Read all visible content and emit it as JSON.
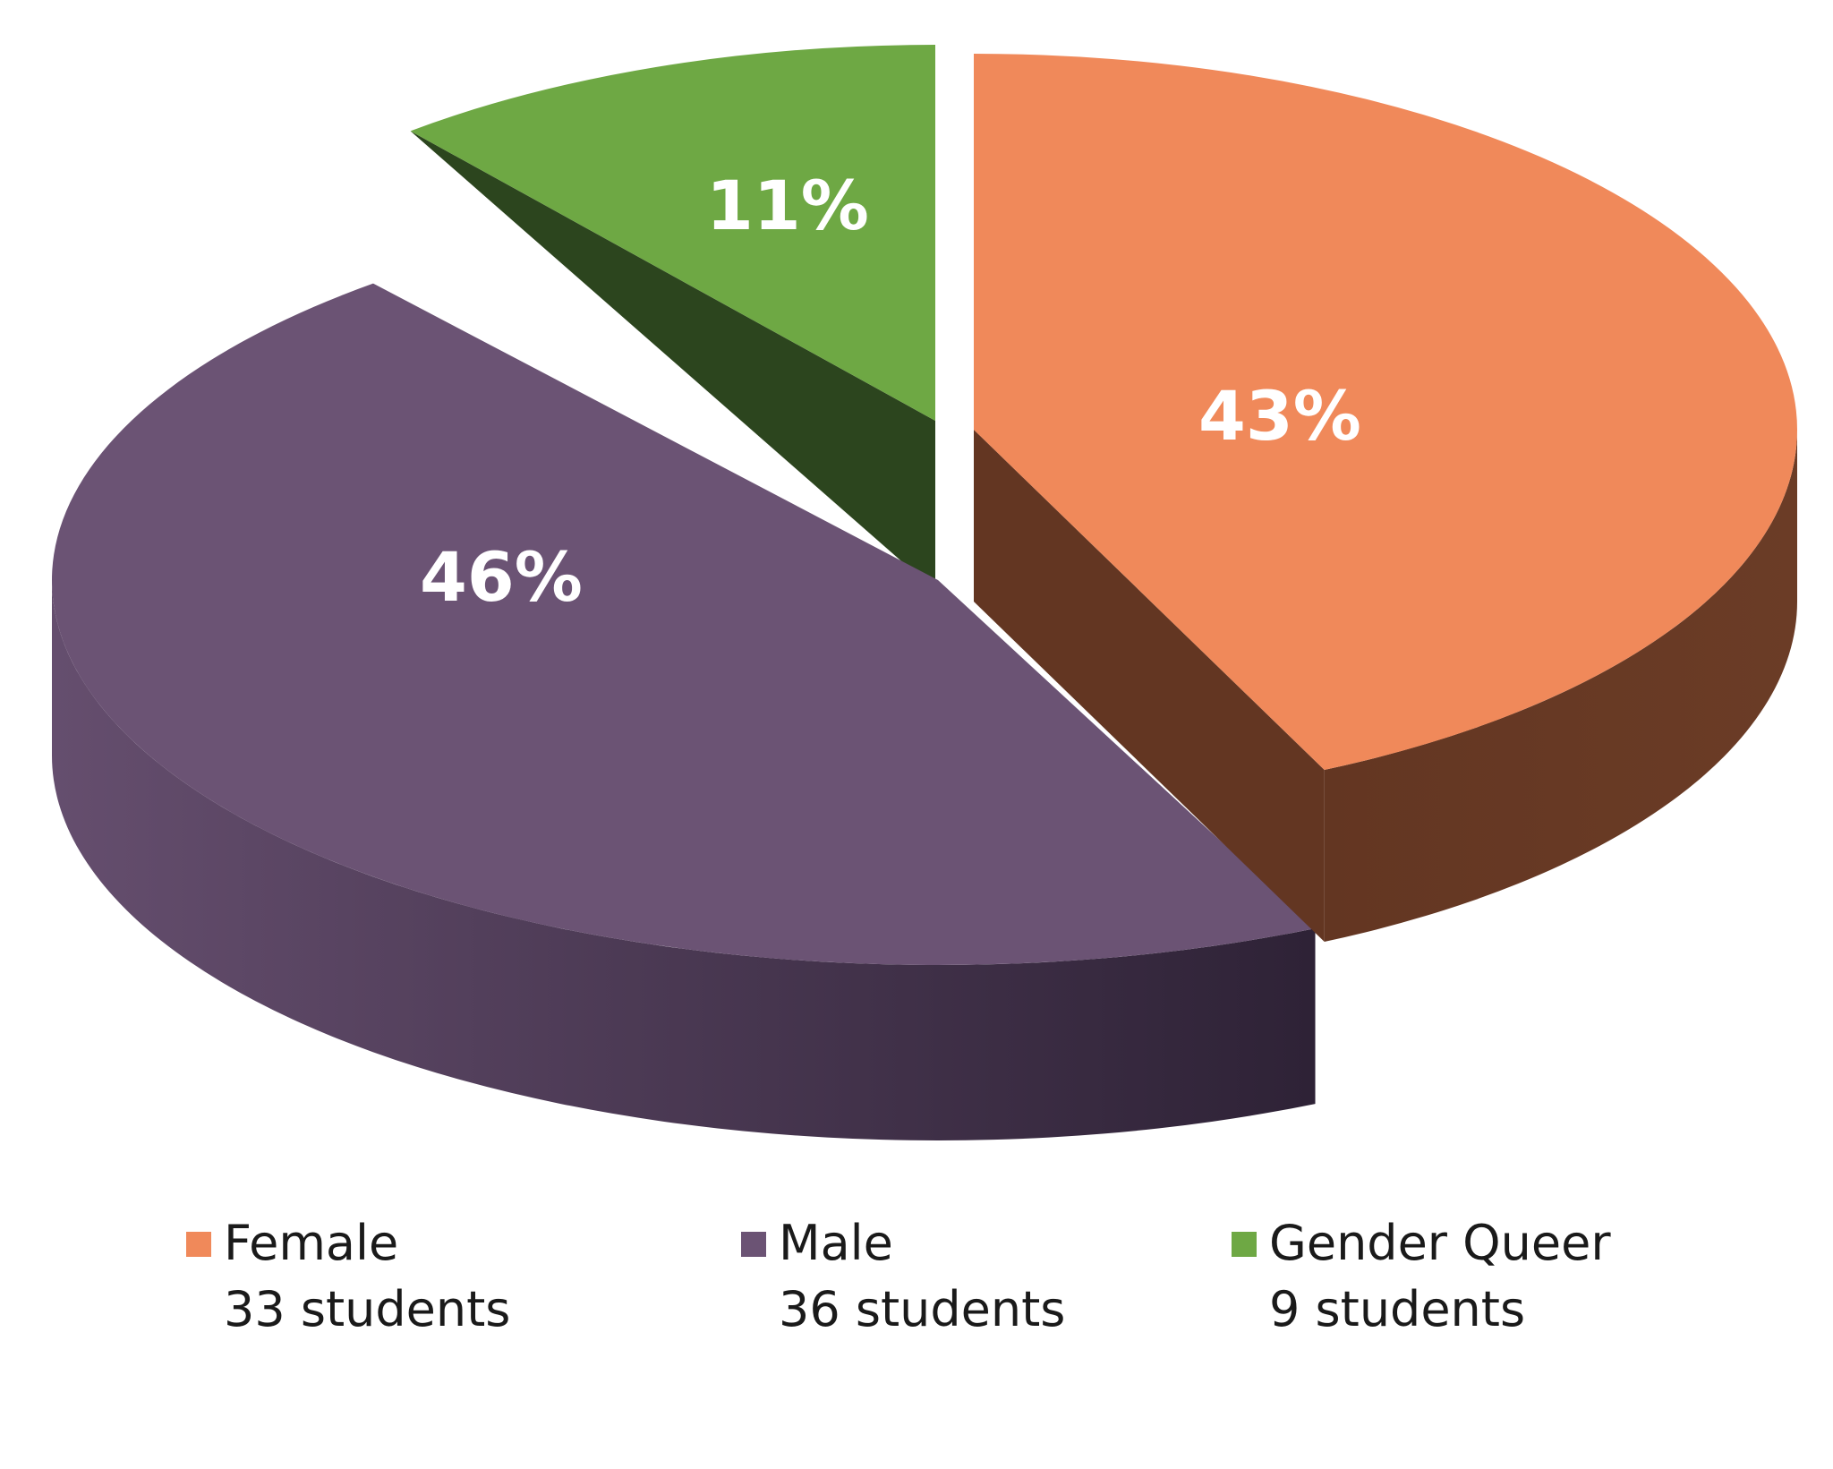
{
  "chart_data": {
    "type": "pie",
    "style": "3d-exploded",
    "slices": [
      {
        "category": "Female",
        "percent": 43,
        "label": "43%",
        "count_label": "33 students",
        "count": 33,
        "color": "#F0895A",
        "side_color": "#633622"
      },
      {
        "category": "Male",
        "percent": 46,
        "label": "46%",
        "count_label": "36 students",
        "count": 36,
        "color": "#6B5374",
        "side_color": "#4A3852"
      },
      {
        "category": "Gender Queer",
        "percent": 11,
        "label": "11%",
        "count_label": "9 students",
        "count": 9,
        "color": "#6EA844",
        "side_color": "#2C451E"
      }
    ],
    "legend_position": "bottom"
  }
}
